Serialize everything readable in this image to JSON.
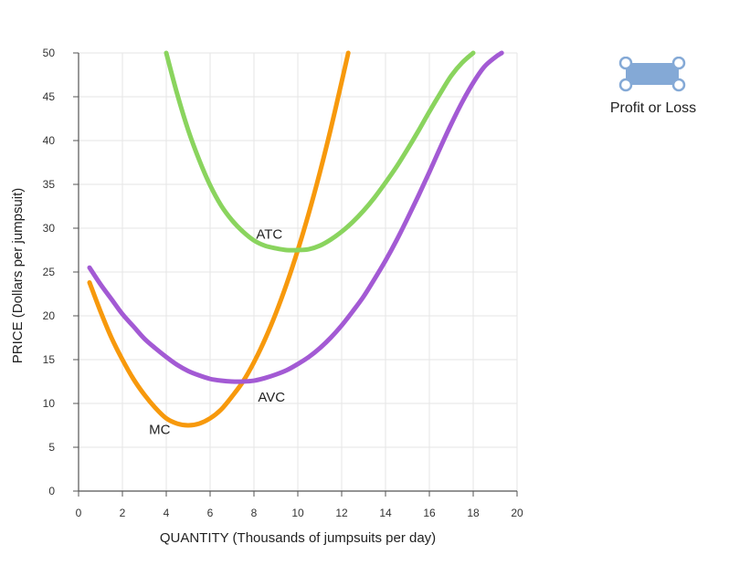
{
  "chart_data": {
    "type": "line",
    "xlabel": "QUANTITY (Thousands of jumpsuits per day)",
    "ylabel": "PRICE (Dollars per jumpsuit)",
    "xlim": [
      0,
      20
    ],
    "ylim": [
      0,
      50
    ],
    "xticks": [
      0,
      2,
      4,
      6,
      8,
      10,
      12,
      14,
      16,
      18,
      20
    ],
    "yticks": [
      0,
      5,
      10,
      15,
      20,
      25,
      30,
      35,
      40,
      45,
      50
    ],
    "grid": true,
    "series": [
      {
        "name": "MC",
        "color": "#f7990c",
        "label_position": {
          "x": 3.7,
          "y": 6.5
        },
        "points": [
          [
            0.5,
            23.8
          ],
          [
            1,
            20.5
          ],
          [
            1.5,
            17.5
          ],
          [
            2,
            15
          ],
          [
            2.5,
            12.8
          ],
          [
            3,
            11
          ],
          [
            3.5,
            9.5
          ],
          [
            4,
            8.3
          ],
          [
            4.5,
            7.7
          ],
          [
            5,
            7.5
          ],
          [
            5.5,
            7.7
          ],
          [
            6,
            8.3
          ],
          [
            6.5,
            9.3
          ],
          [
            7,
            10.8
          ],
          [
            7.5,
            12.5
          ],
          [
            8,
            14.7
          ],
          [
            8.5,
            17.3
          ],
          [
            9,
            20.3
          ],
          [
            9.5,
            23.7
          ],
          [
            10,
            27.5
          ],
          [
            10.5,
            31.7
          ],
          [
            11,
            36.3
          ],
          [
            11.5,
            41.3
          ],
          [
            12,
            46.7
          ],
          [
            12.3,
            50
          ]
        ]
      },
      {
        "name": "ATC",
        "color": "#8ad45e",
        "label_position": {
          "x": 8.7,
          "y": 28.8
        },
        "points": [
          [
            4,
            50
          ],
          [
            4.5,
            45.3
          ],
          [
            5,
            41.2
          ],
          [
            5.5,
            37.8
          ],
          [
            6,
            34.9
          ],
          [
            6.5,
            32.6
          ],
          [
            7,
            30.9
          ],
          [
            7.5,
            29.6
          ],
          [
            8,
            28.6
          ],
          [
            8.5,
            28
          ],
          [
            9,
            27.7
          ],
          [
            9.5,
            27.5
          ],
          [
            10,
            27.5
          ],
          [
            10.5,
            27.6
          ],
          [
            11,
            28
          ],
          [
            11.5,
            28.7
          ],
          [
            12,
            29.6
          ],
          [
            12.5,
            30.7
          ],
          [
            13,
            32
          ],
          [
            13.5,
            33.5
          ],
          [
            14,
            35.2
          ],
          [
            14.5,
            37
          ],
          [
            15,
            39
          ],
          [
            15.5,
            41.1
          ],
          [
            16,
            43.3
          ],
          [
            16.5,
            45.4
          ],
          [
            17,
            47.4
          ],
          [
            17.5,
            48.9
          ],
          [
            18,
            50
          ]
        ]
      },
      {
        "name": "AVC",
        "color": "#a35ad4",
        "label_position": {
          "x": 8.8,
          "y": 10.2
        },
        "points": [
          [
            0.5,
            25.5
          ],
          [
            1,
            23.6
          ],
          [
            1.5,
            21.9
          ],
          [
            2,
            20.2
          ],
          [
            2.5,
            18.8
          ],
          [
            3,
            17.4
          ],
          [
            3.5,
            16.3
          ],
          [
            4,
            15.3
          ],
          [
            4.5,
            14.4
          ],
          [
            5,
            13.7
          ],
          [
            5.5,
            13.2
          ],
          [
            6,
            12.8
          ],
          [
            6.5,
            12.6
          ],
          [
            7,
            12.5
          ],
          [
            7.5,
            12.5
          ],
          [
            8,
            12.6
          ],
          [
            8.5,
            12.9
          ],
          [
            9,
            13.3
          ],
          [
            9.5,
            13.8
          ],
          [
            10,
            14.5
          ],
          [
            10.5,
            15.3
          ],
          [
            11,
            16.3
          ],
          [
            11.5,
            17.5
          ],
          [
            12,
            18.9
          ],
          [
            12.5,
            20.5
          ],
          [
            13,
            22.2
          ],
          [
            13.5,
            24.2
          ],
          [
            14,
            26.3
          ],
          [
            14.5,
            28.6
          ],
          [
            15,
            31.1
          ],
          [
            15.5,
            33.7
          ],
          [
            16,
            36.4
          ],
          [
            16.5,
            39.2
          ],
          [
            17,
            41.9
          ],
          [
            17.5,
            44.4
          ],
          [
            18,
            46.6
          ],
          [
            18.5,
            48.4
          ],
          [
            19,
            49.5
          ],
          [
            19.3,
            50
          ]
        ]
      }
    ]
  },
  "palette": {
    "tool_label": "Profit or Loss",
    "tool_icon": "profit-or-loss-rectangle-icon",
    "tool_color": "#84a9d6"
  }
}
